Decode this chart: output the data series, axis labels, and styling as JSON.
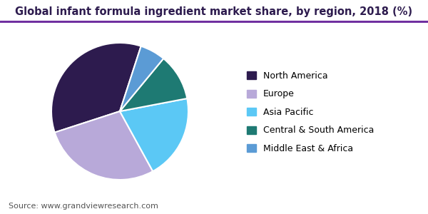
{
  "title": "Global infant formula ingredient market share, by region, 2018 (%)",
  "source": "Source: www.grandviewresearch.com",
  "labels": [
    "North America",
    "Europe",
    "Asia Pacific",
    "Central & South America",
    "Middle East & Africa"
  ],
  "values": [
    35,
    28,
    20,
    11,
    6
  ],
  "colors": [
    "#2d1b4e",
    "#b8a9d9",
    "#5bc8f5",
    "#1e7a73",
    "#5b9bd5"
  ],
  "startangle": 72,
  "background_color": "#ffffff",
  "title_fontsize": 10.5,
  "legend_fontsize": 9,
  "source_fontsize": 8,
  "title_color": "#2d1b4e",
  "source_color": "#555555",
  "header_line_color": "#7030a0",
  "wedge_edgecolor": "#ffffff",
  "wedge_linewidth": 1.5
}
